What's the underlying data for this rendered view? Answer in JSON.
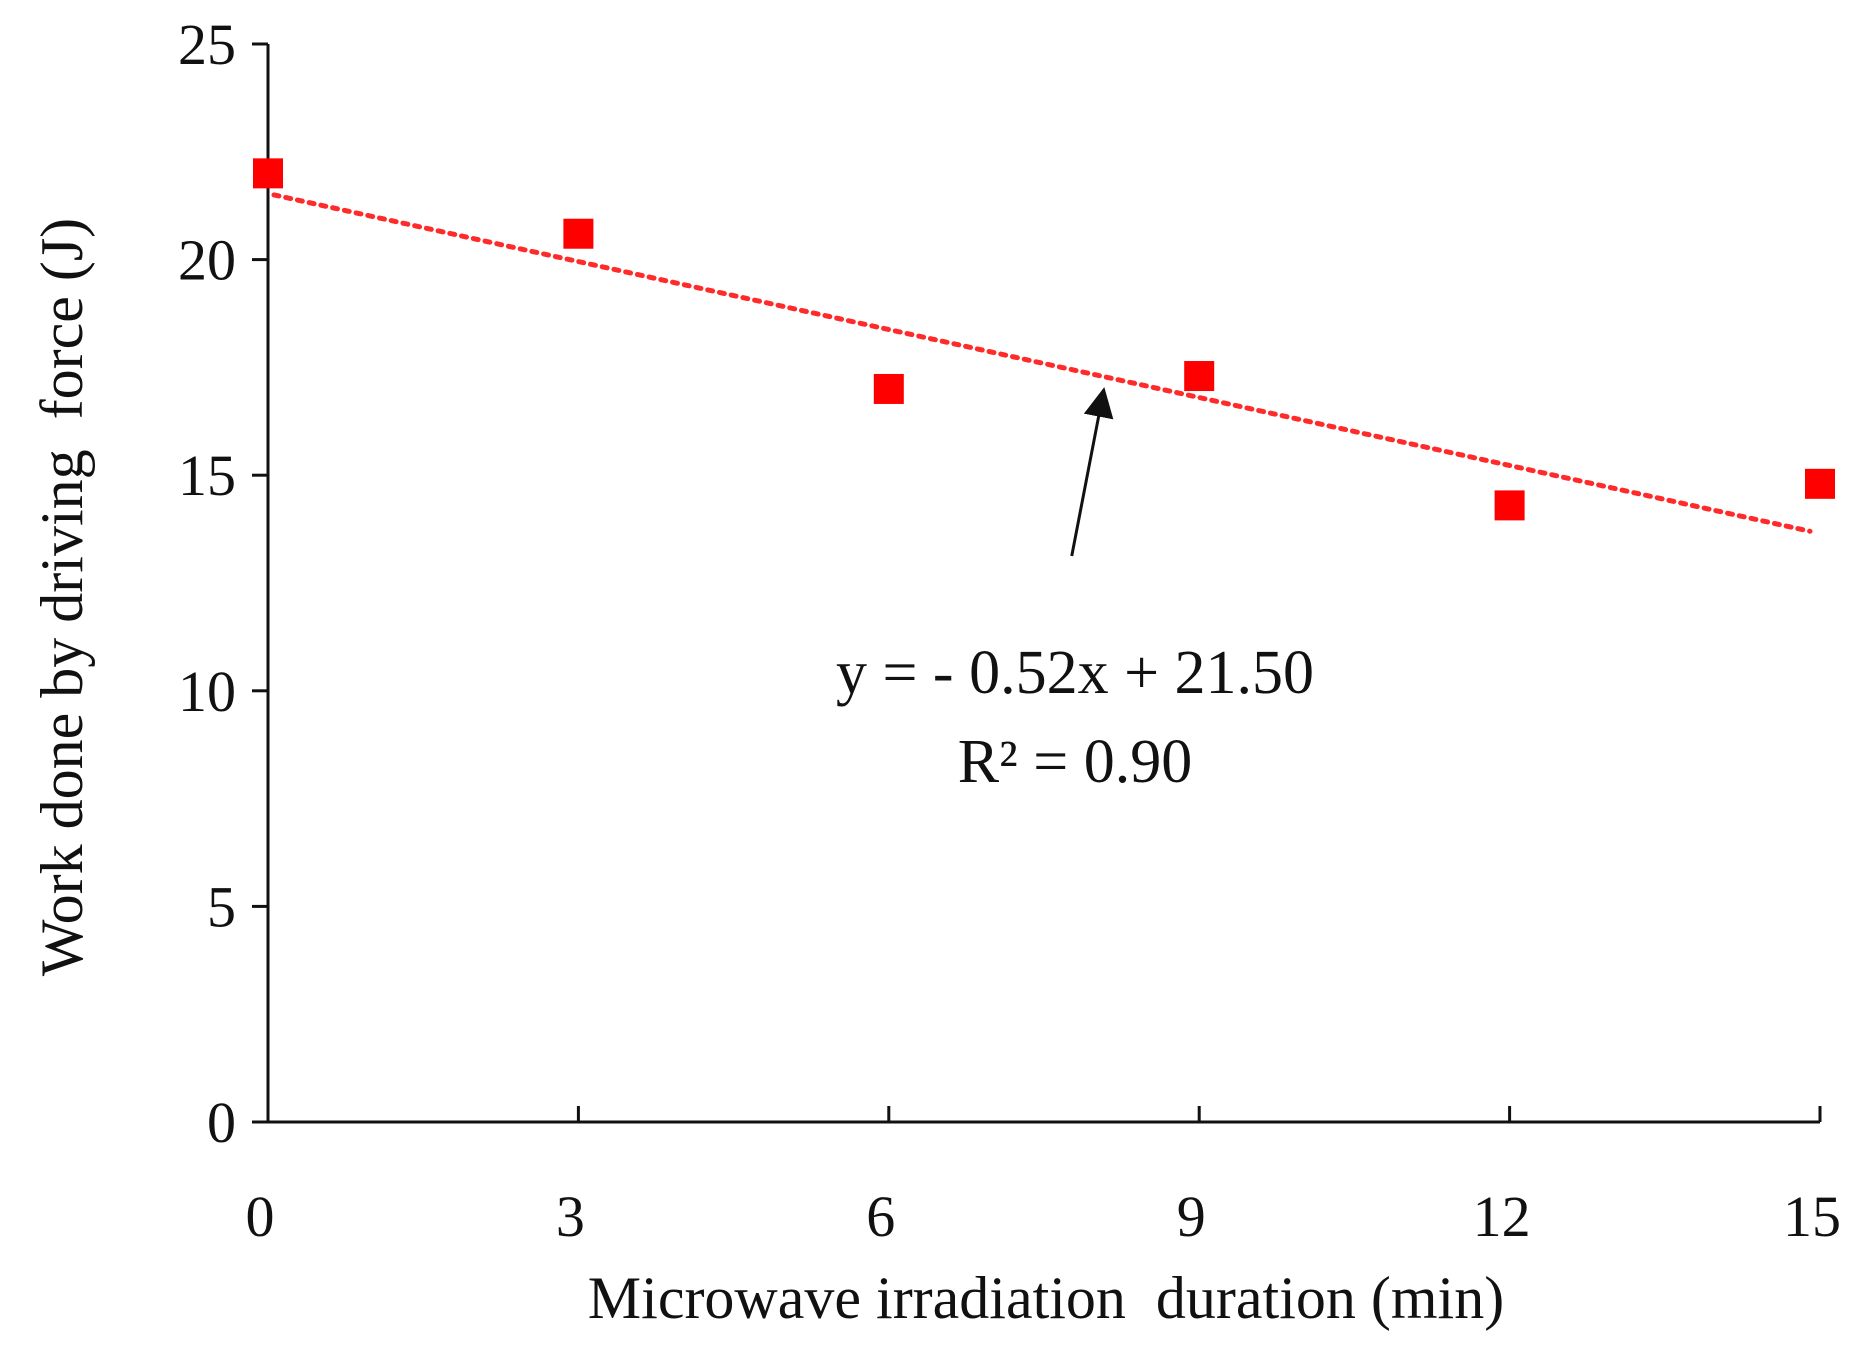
{
  "chart_data": {
    "type": "scatter",
    "title": "",
    "xlabel": "Microwave irradiation  duration (min)",
    "ylabel": "Work done by driving  force (J)",
    "xlim": [
      0,
      15
    ],
    "ylim": [
      0,
      25
    ],
    "x_ticks": [
      0,
      3,
      6,
      9,
      12,
      15
    ],
    "y_ticks": [
      0,
      5,
      10,
      15,
      20,
      25
    ],
    "x_tick_labels": [
      "0",
      "3",
      "6",
      "9",
      "12",
      "15"
    ],
    "y_tick_labels": [
      "0",
      "5",
      "10",
      "15",
      "20",
      "25"
    ],
    "grid": false,
    "series": [
      {
        "name": "Work done by driving force",
        "marker": "square",
        "color": "#ff0000",
        "x": [
          0,
          3,
          6,
          9,
          12,
          15
        ],
        "y": [
          22.0,
          20.6,
          17.0,
          17.3,
          14.3,
          14.8
        ]
      }
    ],
    "trendline": {
      "type": "linear",
      "style": "dotted",
      "color": "#ff2a2a",
      "slope": -0.52,
      "intercept": 21.5,
      "x_range": [
        0,
        15
      ]
    },
    "annotations": [
      {
        "text": "y = - 0.52x + 21.50",
        "arrow_to": [
          8.0,
          17.3
        ]
      },
      {
        "text": "R² = 0.90"
      }
    ]
  }
}
